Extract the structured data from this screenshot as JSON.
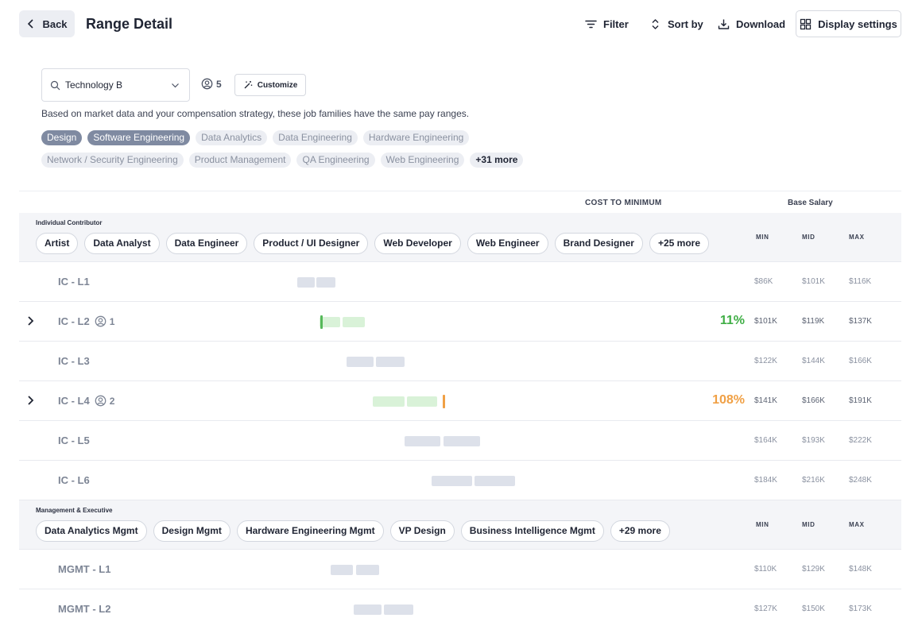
{
  "header": {
    "back_label": "Back",
    "title": "Range Detail",
    "filter_label": "Filter",
    "sort_label": "Sort by",
    "download_label": "Download",
    "display_label": "Display settings"
  },
  "controls": {
    "search_value": "Technology B",
    "member_count": "5",
    "customize_label": "Customize",
    "description": "Based on market data and your compensation strategy, these job families have the same pay ranges."
  },
  "job_families": {
    "row1": [
      {
        "label": "Design",
        "selected": true
      },
      {
        "label": "Software Engineering",
        "selected": true
      },
      {
        "label": "Data Analytics",
        "selected": false
      },
      {
        "label": "Data Engineering",
        "selected": false
      },
      {
        "label": "Hardware Engineering",
        "selected": false
      }
    ],
    "row2": [
      {
        "label": "Network / Security Engineering",
        "selected": false
      },
      {
        "label": "Product Management",
        "selected": false
      },
      {
        "label": "QA Engineering",
        "selected": false
      },
      {
        "label": "Web Engineering",
        "selected": false
      }
    ],
    "more_label": "+31 more"
  },
  "table": {
    "cost_to_minimum_label": "COST TO MINIMUM",
    "base_salary_label": "Base Salary",
    "col_min": "MIN",
    "col_mid": "MID",
    "col_max": "MAX",
    "groups": [
      {
        "label": "Individual Contributor",
        "chips": [
          "Artist",
          "Data Analyst",
          "Data Engineer",
          "Product / UI Designer",
          "Web Developer",
          "Web Engineer",
          "Brand Designer",
          "+25 more"
        ],
        "rows": [
          {
            "level": "IC - L1",
            "count": "",
            "pct": "",
            "pct_color": "",
            "min": "$86K",
            "mid": "$101K",
            "max": "$116K"
          },
          {
            "level": "IC - L2",
            "count": "1",
            "pct": "11%",
            "pct_color": "green",
            "min": "$101K",
            "mid": "$119K",
            "max": "$137K"
          },
          {
            "level": "IC - L3",
            "count": "",
            "pct": "",
            "pct_color": "",
            "min": "$122K",
            "mid": "$144K",
            "max": "$166K"
          },
          {
            "level": "IC - L4",
            "count": "2",
            "pct": "108%",
            "pct_color": "orange",
            "min": "$141K",
            "mid": "$166K",
            "max": "$191K"
          },
          {
            "level": "IC - L5",
            "count": "",
            "pct": "",
            "pct_color": "",
            "min": "$164K",
            "mid": "$193K",
            "max": "$222K"
          },
          {
            "level": "IC - L6",
            "count": "",
            "pct": "",
            "pct_color": "",
            "min": "$184K",
            "mid": "$216K",
            "max": "$248K"
          }
        ]
      },
      {
        "label": "Management & Executive",
        "chips": [
          "Data Analytics Mgmt",
          "Design Mgmt",
          "Hardware Engineering Mgmt",
          "VP Design",
          "Business Intelligence Mgmt",
          "+29 more"
        ],
        "rows": [
          {
            "level": "MGMT - L1",
            "count": "",
            "pct": "",
            "pct_color": "",
            "min": "$110K",
            "mid": "$129K",
            "max": "$148K"
          },
          {
            "level": "MGMT - L2",
            "count": "",
            "pct": "",
            "pct_color": "",
            "min": "$127K",
            "mid": "$150K",
            "max": "$173K"
          }
        ]
      }
    ]
  },
  "colors": {
    "selected_tag": "#7f8aa1",
    "range_bar": "#dde1ea",
    "range_bar_green": "#d9f2d8",
    "pct_green": "#3fae45",
    "pct_orange": "#f0a045"
  }
}
